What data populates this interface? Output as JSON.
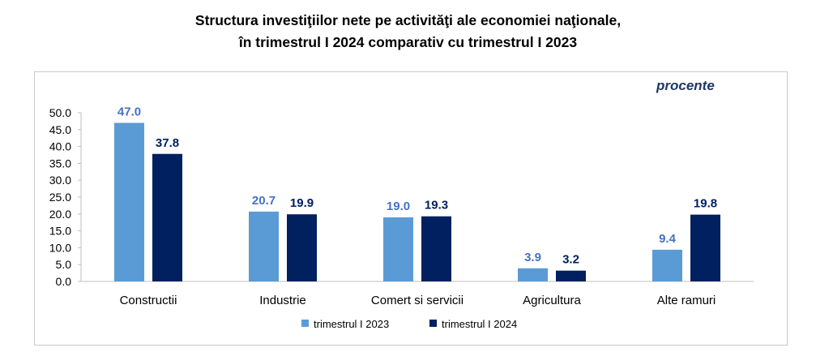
{
  "title_line1": "Structura investiţiilor nete pe activităţi ale economiei naţionale,",
  "title_line2": "în trimestrul I 2024 comparativ cu trimestrul I 2023",
  "unit_label": "procente",
  "colors": {
    "series1": "#5b9bd5",
    "series2": "#002060",
    "label1": "#4472c4",
    "label2": "#002060",
    "grid": "#d9d9d9"
  },
  "chart_data": {
    "type": "bar",
    "categories": [
      "Constructii",
      "Industrie",
      "Comert si servicii",
      "Agricultura",
      "Alte ramuri"
    ],
    "series": [
      {
        "name": "trimestrul I 2023",
        "values": [
          47.0,
          20.7,
          19.0,
          3.9,
          9.4
        ]
      },
      {
        "name": "trimestrul I 2024",
        "values": [
          37.8,
          19.9,
          19.3,
          3.2,
          19.8
        ]
      }
    ],
    "ylim": [
      0,
      50
    ],
    "yticks": [
      "0.0",
      "5.0",
      "10.0",
      "15.0",
      "20.0",
      "25.0",
      "30.0",
      "35.0",
      "40.0",
      "45.0",
      "50.0"
    ],
    "grid": false,
    "legend_position": "bottom"
  }
}
